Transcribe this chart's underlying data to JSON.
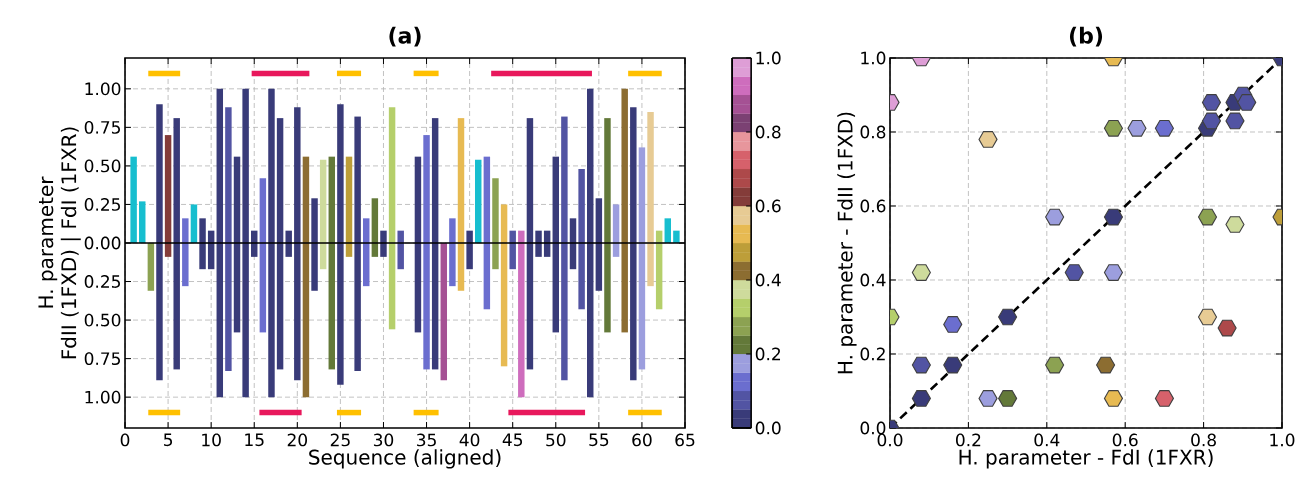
{
  "chart_data": [
    {
      "type": "bar",
      "title": "(a)",
      "xlabel": "Sequence (aligned)",
      "ylabel": "H. parameter\nFdII (1FXD) | FdI (1FXR)",
      "xlim": [
        0,
        65
      ],
      "xticks": [
        0,
        5,
        10,
        15,
        20,
        25,
        30,
        35,
        40,
        45,
        50,
        55,
        60,
        65
      ],
      "ylim": [
        -1.2,
        1.2
      ],
      "yticks": [
        {
          "value": -1,
          "label": "1.00"
        },
        {
          "value": -0.75,
          "label": "0.75"
        },
        {
          "value": -0.5,
          "label": "0.50"
        },
        {
          "value": -0.25,
          "label": "0.25"
        },
        {
          "value": 0,
          "label": "0.00"
        },
        {
          "value": 0.25,
          "label": "0.25"
        },
        {
          "value": 0.5,
          "label": "0.50"
        },
        {
          "value": 0.75,
          "label": "0.75"
        },
        {
          "value": 1,
          "label": "1.00"
        }
      ],
      "grid": true,
      "stacked": true,
      "clim": [
        0,
        1
      ],
      "cticks": [
        {
          "value": 0,
          "label": "0.0"
        },
        0.2,
        0.4,
        0.6,
        0.8,
        {
          "value": 1,
          "label": "1.0"
        }
      ],
      "ref_lines": [
        {
          "axis": "y",
          "value": 0,
          "color": "#000000"
        }
      ],
      "x": [
        1,
        2,
        3,
        4,
        5,
        6,
        7,
        8,
        9,
        10,
        11,
        12,
        13,
        14,
        15,
        16,
        17,
        18,
        19,
        20,
        21,
        22,
        23,
        24,
        25,
        26,
        27,
        28,
        29,
        30,
        31,
        32,
        33,
        34,
        35,
        36,
        37,
        38,
        39,
        40,
        41,
        42,
        43,
        44,
        45,
        46,
        47,
        48,
        49,
        50,
        51,
        52,
        53,
        54,
        55,
        56,
        57,
        58,
        59,
        60,
        61,
        62,
        63,
        64
      ],
      "series": [
        {
          "values": [
            0.56,
            0.27,
            null,
            0.9,
            0.7,
            0.81,
            0.16,
            0.25,
            0.16,
            0.08,
            1.0,
            0.88,
            0.56,
            1.0,
            0.08,
            0.42,
            1.0,
            0.81,
            0.08,
            0.88,
            0.56,
            0.29,
            0.54,
            0.56,
            0.9,
            0.56,
            0.82,
            0.16,
            0.29,
            0.08,
            0.88,
            0.08,
            null,
            0.56,
            0.7,
            0.81,
            null,
            0.16,
            0.81,
            0.08,
            0.54,
            0.56,
            0.42,
            0.25,
            0.08,
            0.08,
            0.81,
            0.08,
            0.08,
            0.56,
            0.82,
            0.16,
            0.48,
            1.0,
            0.29,
            0.81,
            0.25,
            1.0,
            0.88,
            0.62,
            0.85,
            0.08,
            0.16,
            0.08
          ],
          "colors": [
            "#17becf",
            "#17becf",
            null,
            "#393b79",
            "#843c39",
            "#393b79",
            "#6b6ecf",
            "#17becf",
            "#393b79",
            "#393b79",
            "#393b79",
            "#5254a3",
            "#393b79",
            "#393b79",
            "#393b79",
            "#6b6ecf",
            "#393b79",
            "#393b79",
            "#393b79",
            "#393b79",
            "#8c6d31",
            "#393b79",
            "#cedb9c",
            "#637939",
            "#393b79",
            "#bd9e39",
            "#393b79",
            "#6b6ecf",
            "#637939",
            "#393b79",
            "#b5cf6b",
            "#5254a3",
            null,
            "#393b79",
            "#6b6ecf",
            "#393b79",
            null,
            "#6b6ecf",
            "#e7ba52",
            "#393b79",
            "#17becf",
            "#6b6ecf",
            "#8ca252",
            "#e7ba52",
            "#5254a3",
            "#ce6dbd",
            "#393b79",
            "#393b79",
            "#393b79",
            "#393b79",
            "#5254a3",
            "#393b79",
            "#5254a3",
            "#393b79",
            "#393b79",
            "#637939",
            "#9c9ede",
            "#8c6d31",
            "#393b79",
            "#9c9ede",
            "#e7cb94",
            "#b5cf6b",
            "#17becf",
            "#17becf"
          ]
        },
        {
          "values": [
            null,
            null,
            -0.31,
            -0.89,
            -0.09,
            -0.82,
            -0.28,
            null,
            -0.17,
            -0.17,
            -1.0,
            -0.83,
            -0.58,
            -1.0,
            -0.09,
            -0.58,
            -1.0,
            -0.82,
            -0.09,
            -0.89,
            -1.0,
            -0.31,
            -0.17,
            -0.82,
            -0.92,
            -0.09,
            -0.83,
            -0.28,
            -0.09,
            -0.09,
            -0.56,
            -0.17,
            null,
            -0.58,
            -0.82,
            -0.82,
            -0.89,
            -0.28,
            -0.31,
            -0.17,
            null,
            -0.43,
            -0.17,
            -0.8,
            -0.17,
            -1.0,
            -0.82,
            -0.09,
            -0.09,
            -0.58,
            -0.89,
            -0.17,
            -0.43,
            -1.0,
            -0.31,
            -0.58,
            -0.09,
            -0.58,
            -0.89,
            -0.82,
            -0.28,
            -0.43,
            null,
            null
          ],
          "colors": [
            null,
            null,
            "#8ca252",
            "#393b79",
            "#843c39",
            "#393b79",
            "#6b6ecf",
            null,
            "#393b79",
            "#393b79",
            "#393b79",
            "#5254a3",
            "#393b79",
            "#393b79",
            "#393b79",
            "#6b6ecf",
            "#393b79",
            "#393b79",
            "#393b79",
            "#393b79",
            "#8c6d31",
            "#393b79",
            "#cedb9c",
            "#637939",
            "#393b79",
            "#bd9e39",
            "#393b79",
            "#6b6ecf",
            "#637939",
            "#393b79",
            "#b5cf6b",
            "#5254a3",
            null,
            "#393b79",
            "#6b6ecf",
            "#393b79",
            "#a55194",
            "#6b6ecf",
            "#e7ba52",
            "#393b79",
            null,
            "#6b6ecf",
            "#8ca252",
            "#e7ba52",
            "#5254a3",
            "#ce6dbd",
            "#393b79",
            "#393b79",
            "#393b79",
            "#393b79",
            "#5254a3",
            "#393b79",
            "#5254a3",
            "#393b79",
            "#393b79",
            "#637939",
            "#9c9ede",
            "#8c6d31",
            "#393b79",
            "#9c9ede",
            "#e7cb94",
            "#b5cf6b",
            null,
            null
          ]
        },
        {
          "type": "line",
          "color": "#ffc000",
          "x": [
            2.7,
            6.4
          ],
          "values": [
            1.1,
            1.1
          ]
        },
        {
          "type": "line",
          "color": "#e8185c",
          "x": [
            14.7,
            21.4
          ],
          "values": [
            1.1,
            1.1
          ]
        },
        {
          "type": "line",
          "color": "#ffc000",
          "x": [
            24.6,
            27.4
          ],
          "values": [
            1.1,
            1.1
          ]
        },
        {
          "type": "line",
          "color": "#ffc000",
          "x": [
            33.5,
            36.4
          ],
          "values": [
            1.1,
            1.1
          ]
        },
        {
          "type": "line",
          "color": "#e8185c",
          "x": [
            42.5,
            54.2
          ],
          "values": [
            1.1,
            1.1
          ]
        },
        {
          "type": "line",
          "color": "#ffc000",
          "x": [
            58.4,
            62.3
          ],
          "values": [
            1.1,
            1.1
          ]
        },
        {
          "type": "line",
          "color": "#ffc000",
          "x": [
            2.7,
            6.4
          ],
          "values": [
            -1.1,
            -1.1
          ]
        },
        {
          "type": "line",
          "color": "#e8185c",
          "x": [
            15.6,
            20.5
          ],
          "values": [
            -1.1,
            -1.1
          ]
        },
        {
          "type": "line",
          "color": "#ffc000",
          "x": [
            24.6,
            27.4
          ],
          "values": [
            -1.1,
            -1.1
          ]
        },
        {
          "type": "line",
          "color": "#ffc000",
          "x": [
            33.5,
            36.4
          ],
          "values": [
            -1.1,
            -1.1
          ]
        },
        {
          "type": "line",
          "color": "#e8185c",
          "x": [
            44.5,
            53.4
          ],
          "values": [
            -1.1,
            -1.1
          ]
        },
        {
          "type": "line",
          "color": "#ffc000",
          "x": [
            58.4,
            62.3
          ],
          "values": [
            -1.1,
            -1.1
          ]
        }
      ]
    },
    {
      "type": "scatter",
      "title": "(b)",
      "xlabel": "H. parameter - FdI (1FXR)",
      "ylabel": "H. parameter - FdII (1FXD)",
      "xlim": [
        0,
        1
      ],
      "ylim": [
        0,
        1
      ],
      "xticks": [
        {
          "value": 0,
          "label": "0.0"
        },
        0.2,
        0.4,
        0.6,
        0.8,
        {
          "value": 1,
          "label": "1.0"
        }
      ],
      "yticks": [
        {
          "value": 0,
          "label": "0.0"
        },
        0.2,
        0.4,
        0.6,
        0.8,
        {
          "value": 1,
          "label": "1.0"
        }
      ],
      "grid": true,
      "series": [
        {
          "type": "line",
          "color": "#000000",
          "line_style": "dashed",
          "x": [
            0,
            1
          ],
          "values": [
            0,
            1
          ]
        },
        {
          "type": "scatter",
          "x": [
            0.08,
            0.57,
            1.0,
            0.0,
            0.25,
            0.57,
            0.63,
            0.7,
            0.81,
            0.82,
            0.82,
            0.88,
            0.88,
            0.9,
            0.91,
            0.42,
            0.57,
            0.81,
            0.88,
            1.0,
            0.08,
            0.47,
            0.57,
            0.0,
            0.16,
            0.3,
            0.81,
            0.86,
            0.08,
            0.16,
            0.08,
            0.25,
            0.3,
            0.42,
            0.55,
            0.57,
            0.7,
            0.0
          ],
          "values": [
            1.0,
            1.0,
            1.0,
            0.88,
            0.78,
            0.81,
            0.81,
            0.81,
            0.81,
            0.83,
            0.88,
            0.83,
            0.88,
            0.9,
            0.88,
            0.57,
            0.57,
            0.57,
            0.55,
            0.57,
            0.42,
            0.42,
            0.42,
            0.3,
            0.28,
            0.3,
            0.3,
            0.27,
            0.17,
            0.17,
            0.08,
            0.08,
            0.08,
            0.17,
            0.17,
            0.08,
            0.08,
            0.0
          ],
          "colors": [
            "#de9ed6",
            "#e7ba52",
            "#393b79",
            "#de9ed6",
            "#e7cb94",
            "#8ca252",
            "#9c9ede",
            "#6b6ecf",
            "#393b79",
            "#5254a3",
            "#5254a3",
            "#5254a3",
            "#393b79",
            "#5254a3",
            "#5254a3",
            "#9c9ede",
            "#393b79",
            "#8ca252",
            "#cedb9c",
            "#bd9e39",
            "#cedb9c",
            "#5254a3",
            "#9c9ede",
            "#b5cf6b",
            "#6b6ecf",
            "#393b79",
            "#e7cb94",
            "#ad494a",
            "#5254a3",
            "#393b79",
            "#393b79",
            "#9c9ede",
            "#637939",
            "#8ca252",
            "#8c6d31",
            "#e7ba52",
            "#d6616b",
            "#393b79"
          ]
        }
      ]
    }
  ]
}
